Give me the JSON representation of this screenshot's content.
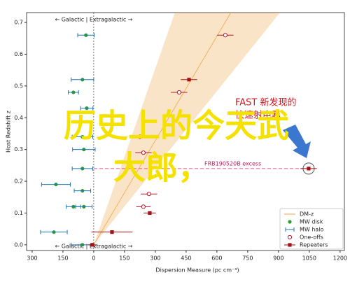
{
  "chart_data": {
    "type": "scatter",
    "xlabel": "Dispersion Measure (pc cm⁻³)",
    "ylabel": "Host Redshift z",
    "xlim": [
      -327,
      1221
    ],
    "ylim": [
      -0.018,
      0.731
    ],
    "xticks": [
      {
        "value": -300,
        "label": "300"
      },
      {
        "value": -150,
        "label": "150"
      },
      0,
      150,
      300,
      450,
      600,
      750,
      900,
      1050,
      1200
    ],
    "yticks": [
      {
        "value": 0,
        "label": "0.0"
      },
      0.1,
      0.2,
      0.3,
      0.4,
      0.5,
      0.6,
      0.7
    ],
    "annotations": {
      "top": "← Galactic | Extragalactic →",
      "bottom": "← Galactic | Extragalactic →",
      "excess": "FRB190520B excess"
    },
    "band": {
      "name": "DM-z",
      "color": "#f0a64a",
      "z": [
        0,
        0.731
      ],
      "center": [
        0,
        668
      ],
      "low": [
        0,
        395
      ],
      "high": [
        0,
        907
      ]
    },
    "series": [
      {
        "name": "MW disk",
        "color": "#2ca02c",
        "marker": "dot",
        "x": [
          -38,
          -55,
          -99,
          -34,
          -55,
          -48,
          -55,
          -184,
          -55,
          -99,
          -48,
          -194,
          -55
        ],
        "values": [
          0.66,
          0.52,
          0.48,
          0.43,
          0.34,
          0.3,
          0.24,
          0.19,
          0.17,
          0.12,
          0.12,
          0.04,
          0
        ]
      },
      {
        "name": "MW halo",
        "color": "#1f77b4",
        "marker": "errorbar",
        "x": [
          -38,
          -55,
          -99,
          -34,
          -55,
          -48,
          -55,
          -184,
          -55,
          -99,
          -48,
          -194,
          -55
        ],
        "xerr": [
          40,
          55,
          25,
          30,
          50,
          55,
          50,
          70,
          40,
          35,
          40,
          65,
          55
        ],
        "values": [
          0.66,
          0.52,
          0.48,
          0.43,
          0.34,
          0.3,
          0.24,
          0.19,
          0.17,
          0.12,
          0.12,
          0.04,
          0
        ]
      },
      {
        "name": "One-offs",
        "color": "#b2182b",
        "marker": "open",
        "x": [
          641,
          416,
          225,
          242,
          269,
          242
        ],
        "xerr": [
          40,
          40,
          35,
          40,
          40,
          35
        ],
        "values": [
          0.66,
          0.48,
          0.34,
          0.29,
          0.16,
          0.12
        ]
      },
      {
        "name": "Repeaters",
        "color": "#a50f15",
        "marker": "square",
        "x": [
          464,
          273,
          89,
          -7,
          1047
        ],
        "xerr": [
          40,
          30,
          100,
          20,
          40
        ],
        "values": [
          0.52,
          0.1,
          0.04,
          0,
          0.24
        ]
      }
    ],
    "legend": "lower right",
    "overlay": {
      "lines": [
        "历史上的今天武",
        "大郎，"
      ],
      "note": [
        "FAST 新发现的",
        "快速射电暴"
      ]
    }
  }
}
